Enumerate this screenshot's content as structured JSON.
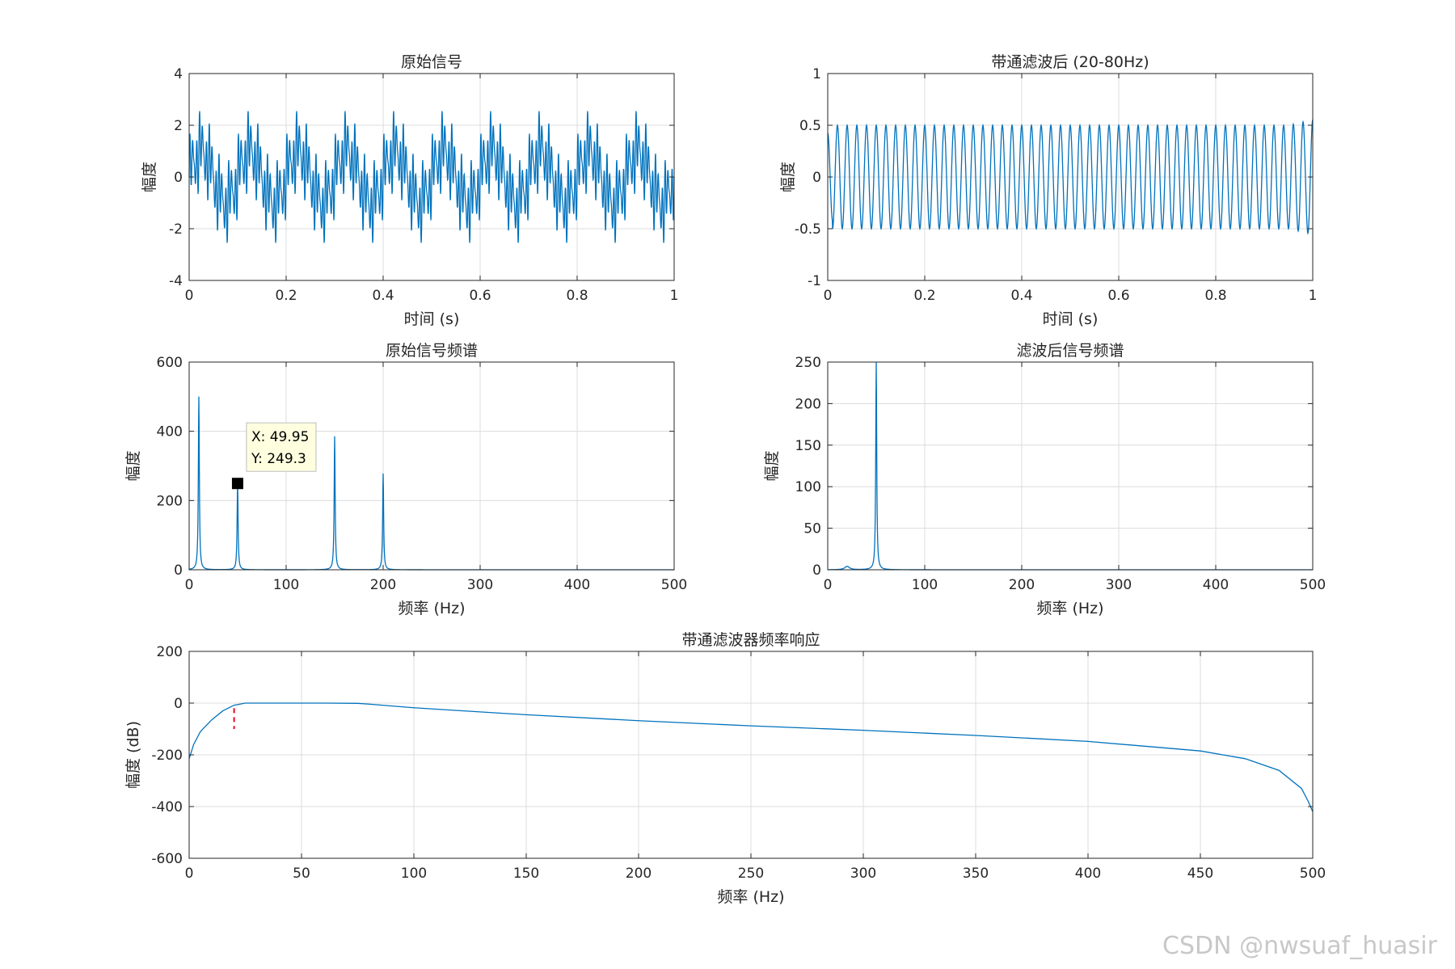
{
  "colors": {
    "line": "#0072BD",
    "axis": "#262626",
    "grid": "#dcdcdc",
    "marker_dash": "#e8001c",
    "tooltip_bg": "#ffffe0"
  },
  "watermark": "CSDN @nwsuaf_huasir",
  "chart_data": [
    {
      "id": "p1",
      "type": "line",
      "title": "原始信号",
      "xlabel": "时间 (s)",
      "ylabel": "幅度",
      "xlim": [
        0,
        1
      ],
      "ylim": [
        -4,
        4
      ],
      "xticks": [
        0,
        0.2,
        0.4,
        0.6,
        0.8,
        1
      ],
      "yticks": [
        -4,
        -2,
        0,
        2,
        4
      ],
      "grid": true,
      "series": [
        {
          "signal": "sum_of_sines",
          "components": [
            {
              "freq_hz": 10,
              "amp": 1
            },
            {
              "freq_hz": 50,
              "amp": 0.5
            },
            {
              "freq_hz": 150,
              "amp": 0.8
            },
            {
              "freq_hz": 200,
              "amp": 0.6
            }
          ],
          "x_range": [
            0,
            1
          ]
        }
      ]
    },
    {
      "id": "p2",
      "type": "line",
      "title": "带通滤波后 (20-80Hz)",
      "xlabel": "时间 (s)",
      "ylabel": "幅度",
      "xlim": [
        0,
        1
      ],
      "ylim": [
        -1,
        1
      ],
      "xticks": [
        0,
        0.2,
        0.4,
        0.6,
        0.8,
        1
      ],
      "yticks": [
        -1,
        -0.5,
        0,
        0.5,
        1
      ],
      "grid": true,
      "series": [
        {
          "signal": "sine",
          "freq_hz": 50,
          "amp": 0.5,
          "x_range": [
            0,
            1
          ]
        }
      ]
    },
    {
      "id": "p3",
      "type": "line",
      "title": "原始信号频谱",
      "xlabel": "频率 (Hz)",
      "ylabel": "幅度",
      "xlim": [
        0,
        500
      ],
      "ylim": [
        0,
        600
      ],
      "xticks": [
        0,
        100,
        200,
        300,
        400,
        500
      ],
      "yticks": [
        0,
        200,
        400,
        600
      ],
      "grid": true,
      "peaks": [
        {
          "x": 10,
          "y": 500
        },
        {
          "x": 49.95,
          "y": 249.3
        },
        {
          "x": 150,
          "y": 385
        },
        {
          "x": 200,
          "y": 278
        }
      ],
      "datatip": {
        "x": 49.95,
        "y": 249.3,
        "x_text": "X: 49.95",
        "y_text": "Y: 249.3"
      }
    },
    {
      "id": "p4",
      "type": "line",
      "title": "滤波后信号频谱",
      "xlabel": "频率 (Hz)",
      "ylabel": "幅度",
      "xlim": [
        0,
        500
      ],
      "ylim": [
        0,
        250
      ],
      "xticks": [
        0,
        100,
        200,
        300,
        400,
        500
      ],
      "yticks": [
        0,
        50,
        100,
        150,
        200,
        250
      ],
      "grid": true,
      "peaks": [
        {
          "x": 20,
          "y": 4
        },
        {
          "x": 50,
          "y": 250
        }
      ]
    },
    {
      "id": "p5",
      "type": "line",
      "title": "带通滤波器频率响应",
      "xlabel": "频率 (Hz)",
      "ylabel": "幅度 (dB)",
      "xlim": [
        0,
        500
      ],
      "ylim": [
        -600,
        200
      ],
      "xticks": [
        0,
        50,
        100,
        150,
        200,
        250,
        300,
        350,
        400,
        450,
        500
      ],
      "yticks": [
        -600,
        -400,
        -200,
        0,
        200
      ],
      "grid": true,
      "x": [
        0,
        2,
        5,
        10,
        15,
        20,
        25,
        60,
        75,
        80,
        100,
        150,
        200,
        250,
        300,
        350,
        400,
        450,
        470,
        485,
        495,
        498,
        500
      ],
      "y": [
        -215,
        -160,
        -110,
        -65,
        -30,
        -8,
        0,
        0,
        -1,
        -4,
        -18,
        -45,
        -68,
        -88,
        -105,
        -125,
        -148,
        -185,
        -215,
        -260,
        -330,
        -380,
        -420
      ],
      "marker": {
        "x": 20,
        "y_range": [
          -100,
          -20
        ],
        "style": "dashed"
      }
    }
  ]
}
